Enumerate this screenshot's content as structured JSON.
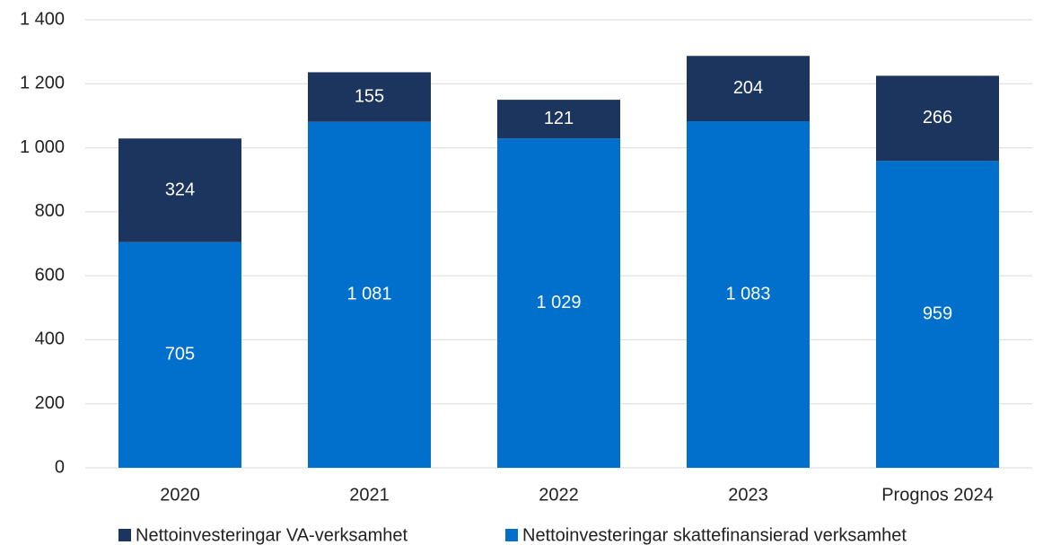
{
  "chart_data": {
    "type": "stacked_bar",
    "categories": [
      "2020",
      "2021",
      "2022",
      "2023",
      "Prognos 2024"
    ],
    "series": [
      {
        "name": "Nettoinvesteringar skattefinansierad verksamhet",
        "color": "#0070cc",
        "values": [
          705,
          1081,
          1029,
          1083,
          959
        ],
        "value_labels": [
          "705",
          "1 081",
          "1 029",
          "1 083",
          "959"
        ]
      },
      {
        "name": "Nettoinvesteringar VA-verksamhet",
        "color": "#1c355e",
        "values": [
          324,
          155,
          121,
          204,
          266
        ],
        "value_labels": [
          "324",
          "155",
          "121",
          "204",
          "266"
        ]
      }
    ],
    "ylim": [
      0,
      1400
    ],
    "yticks": [
      0,
      200,
      400,
      600,
      800,
      {
        "value": 1000,
        "label": "1 000"
      },
      {
        "value": 1200,
        "label": "1 200"
      },
      {
        "value": 1400,
        "label": "1 400"
      }
    ],
    "grid": true
  }
}
